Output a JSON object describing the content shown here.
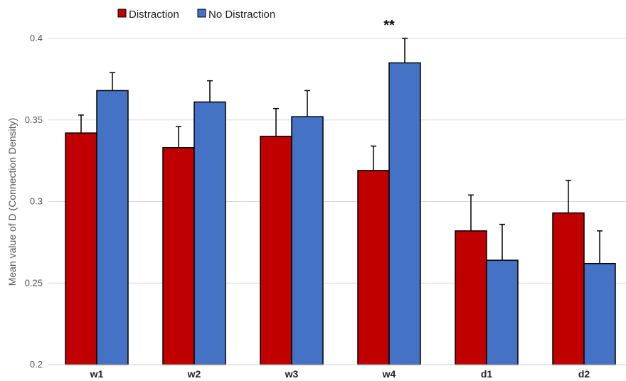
{
  "chart_data": {
    "type": "bar",
    "title": "",
    "xlabel": "",
    "ylabel": "Mean value of D (Connection Density)",
    "ylim": [
      0.2,
      0.4
    ],
    "yticks": [
      "0.2",
      "0.25",
      "0.3",
      "0.35",
      "0.4"
    ],
    "categories": [
      "w1",
      "w2",
      "w3",
      "w4",
      "d1",
      "d2"
    ],
    "grid": true,
    "legend_position": "top-left",
    "series": [
      {
        "name": "Distraction",
        "color": "#c00000",
        "values": [
          0.342,
          0.333,
          0.34,
          0.319,
          0.282,
          0.293
        ],
        "errors": [
          0.011,
          0.013,
          0.017,
          0.015,
          0.022,
          0.02
        ]
      },
      {
        "name": "No Distraction",
        "color": "#4472c4",
        "values": [
          0.368,
          0.361,
          0.352,
          0.385,
          0.264,
          0.262
        ],
        "errors": [
          0.011,
          0.013,
          0.016,
          0.015,
          0.022,
          0.02
        ]
      }
    ],
    "annotations": [
      {
        "category": "w4",
        "text": "**"
      }
    ]
  }
}
